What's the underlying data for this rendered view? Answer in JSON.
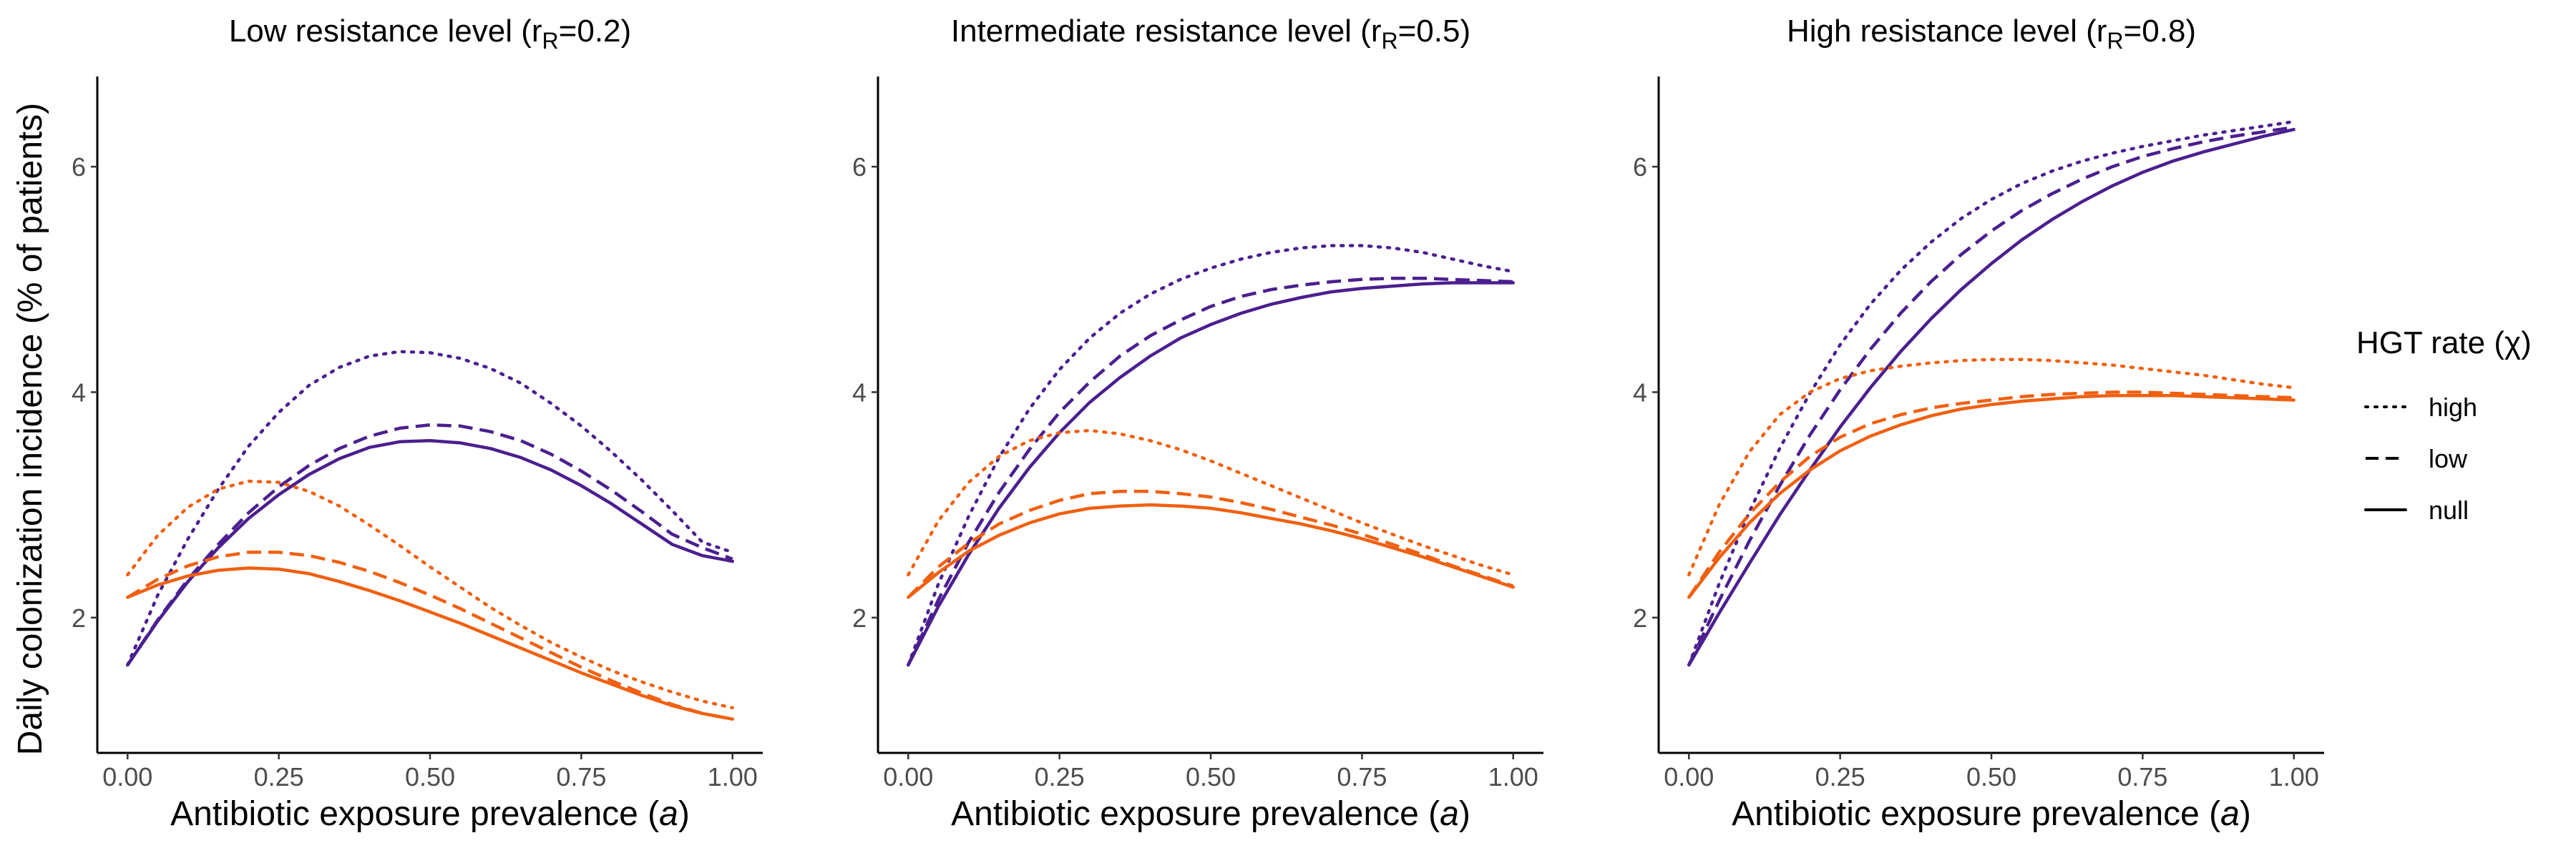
{
  "figure": {
    "y_axis_title": "Daily colonization incidence (% of patients)",
    "x_axis_title_prefix": "Antibiotic exposure prevalence (",
    "x_axis_title_var": "a",
    "x_axis_title_suffix": ")"
  },
  "legend": {
    "title": "HGT rate (χ)",
    "items": [
      {
        "label": "high",
        "dash": "dotted"
      },
      {
        "label": "low",
        "dash": "dashed"
      },
      {
        "label": "null",
        "dash": "solid"
      }
    ]
  },
  "colors": {
    "purple": "#4b1f8f",
    "orange": "#f06010"
  },
  "chart_data": [
    {
      "type": "line",
      "title": "Low resistance level (rR=0.2)",
      "title_main": "Low resistance level (r",
      "title_sub": "R",
      "title_end": "=0.2)",
      "xlabel": "Antibiotic exposure prevalence (a)",
      "ylabel": "Daily colonization incidence (% of patients)",
      "xlim": [
        -0.05,
        1.05
      ],
      "ylim": [
        0.8,
        6.8
      ],
      "xticks": [
        0,
        0.25,
        0.5,
        0.75,
        1
      ],
      "xtick_labels": [
        "0.00",
        "0.25",
        "0.50",
        "0.75",
        "1.00"
      ],
      "yticks": [
        2,
        4,
        6
      ],
      "ytick_labels": [
        "2",
        "4",
        "6"
      ],
      "x": [
        0,
        0.05,
        0.1,
        0.15,
        0.2,
        0.25,
        0.3,
        0.35,
        0.4,
        0.45,
        0.5,
        0.55,
        0.6,
        0.65,
        0.7,
        0.75,
        0.8,
        0.85,
        0.9,
        0.95,
        1.0
      ],
      "series": [
        {
          "color": "purple",
          "dash": "dotted",
          "values": [
            1.58,
            2.2,
            2.7,
            3.14,
            3.52,
            3.82,
            4.06,
            4.22,
            4.32,
            4.36,
            4.35,
            4.3,
            4.21,
            4.08,
            3.9,
            3.7,
            3.47,
            3.22,
            2.95,
            2.67,
            2.58
          ]
        },
        {
          "color": "purple",
          "dash": "dashed",
          "values": [
            1.58,
            1.98,
            2.34,
            2.65,
            2.93,
            3.16,
            3.35,
            3.5,
            3.61,
            3.68,
            3.71,
            3.7,
            3.65,
            3.57,
            3.45,
            3.3,
            3.13,
            2.94,
            2.74,
            2.62,
            2.52
          ]
        },
        {
          "color": "purple",
          "dash": "solid",
          "values": [
            1.58,
            1.97,
            2.32,
            2.62,
            2.88,
            3.09,
            3.27,
            3.41,
            3.51,
            3.56,
            3.57,
            3.55,
            3.5,
            3.42,
            3.31,
            3.17,
            3.01,
            2.83,
            2.65,
            2.55,
            2.5
          ]
        },
        {
          "color": "orange",
          "dash": "dotted",
          "values": [
            2.38,
            2.73,
            2.98,
            3.14,
            3.21,
            3.2,
            3.12,
            2.99,
            2.82,
            2.64,
            2.45,
            2.27,
            2.09,
            1.93,
            1.78,
            1.65,
            1.53,
            1.43,
            1.34,
            1.26,
            1.2
          ]
        },
        {
          "color": "orange",
          "dash": "dashed",
          "values": [
            2.18,
            2.34,
            2.46,
            2.54,
            2.58,
            2.58,
            2.55,
            2.49,
            2.41,
            2.31,
            2.2,
            2.08,
            1.95,
            1.82,
            1.69,
            1.56,
            1.44,
            1.33,
            1.23,
            1.15,
            1.1
          ]
        },
        {
          "color": "orange",
          "dash": "solid",
          "values": [
            2.18,
            2.29,
            2.37,
            2.42,
            2.44,
            2.43,
            2.39,
            2.32,
            2.24,
            2.15,
            2.05,
            1.95,
            1.84,
            1.73,
            1.62,
            1.51,
            1.41,
            1.31,
            1.22,
            1.15,
            1.1
          ]
        }
      ]
    },
    {
      "type": "line",
      "title": "Intermediate resistance level (rR=0.5)",
      "title_main": "Intermediate resistance level (r",
      "title_sub": "R",
      "title_end": "=0.5)",
      "xlabel": "Antibiotic exposure prevalence (a)",
      "xlim": [
        -0.05,
        1.05
      ],
      "ylim": [
        0.8,
        6.8
      ],
      "xticks": [
        0,
        0.25,
        0.5,
        0.75,
        1
      ],
      "xtick_labels": [
        "0.00",
        "0.25",
        "0.50",
        "0.75",
        "1.00"
      ],
      "yticks": [
        2,
        4,
        6
      ],
      "ytick_labels": [
        "2",
        "4",
        "6"
      ],
      "x": [
        0,
        0.05,
        0.1,
        0.15,
        0.2,
        0.25,
        0.3,
        0.35,
        0.4,
        0.45,
        0.5,
        0.55,
        0.6,
        0.65,
        0.7,
        0.75,
        0.8,
        0.85,
        0.9,
        0.95,
        1.0
      ],
      "series": [
        {
          "color": "purple",
          "dash": "dotted",
          "values": [
            1.58,
            2.3,
            2.9,
            3.42,
            3.85,
            4.2,
            4.48,
            4.7,
            4.87,
            5.0,
            5.1,
            5.18,
            5.24,
            5.28,
            5.3,
            5.3,
            5.28,
            5.24,
            5.18,
            5.12,
            5.07
          ]
        },
        {
          "color": "purple",
          "dash": "dashed",
          "values": [
            1.58,
            2.16,
            2.67,
            3.11,
            3.49,
            3.82,
            4.09,
            4.32,
            4.5,
            4.64,
            4.76,
            4.85,
            4.91,
            4.95,
            4.98,
            5.0,
            5.01,
            5.01,
            5.0,
            4.99,
            4.98
          ]
        },
        {
          "color": "purple",
          "dash": "solid",
          "values": [
            1.58,
            2.1,
            2.56,
            2.97,
            3.33,
            3.64,
            3.91,
            4.13,
            4.32,
            4.48,
            4.6,
            4.7,
            4.78,
            4.84,
            4.89,
            4.92,
            4.94,
            4.96,
            4.97,
            4.97,
            4.97
          ]
        },
        {
          "color": "orange",
          "dash": "dotted",
          "values": [
            2.38,
            2.86,
            3.2,
            3.43,
            3.57,
            3.64,
            3.66,
            3.63,
            3.57,
            3.49,
            3.39,
            3.28,
            3.17,
            3.06,
            2.95,
            2.84,
            2.74,
            2.64,
            2.55,
            2.46,
            2.38
          ]
        },
        {
          "color": "orange",
          "dash": "dashed",
          "values": [
            2.18,
            2.45,
            2.66,
            2.83,
            2.95,
            3.04,
            3.1,
            3.12,
            3.12,
            3.1,
            3.07,
            3.02,
            2.96,
            2.89,
            2.82,
            2.74,
            2.65,
            2.56,
            2.46,
            2.37,
            2.28
          ]
        },
        {
          "color": "orange",
          "dash": "solid",
          "values": [
            2.18,
            2.4,
            2.59,
            2.73,
            2.84,
            2.92,
            2.97,
            2.99,
            3.0,
            2.99,
            2.97,
            2.93,
            2.88,
            2.83,
            2.77,
            2.7,
            2.62,
            2.54,
            2.45,
            2.36,
            2.27
          ]
        }
      ]
    },
    {
      "type": "line",
      "title": "High resistance level (rR=0.8)",
      "title_main": "High resistance level (r",
      "title_sub": "R",
      "title_end": "=0.8)",
      "xlabel": "Antibiotic exposure prevalence (a)",
      "xlim": [
        -0.05,
        1.05
      ],
      "ylim": [
        0.8,
        6.8
      ],
      "xticks": [
        0,
        0.25,
        0.5,
        0.75,
        1
      ],
      "xtick_labels": [
        "0.00",
        "0.25",
        "0.50",
        "0.75",
        "1.00"
      ],
      "yticks": [
        2,
        4,
        6
      ],
      "ytick_labels": [
        "2",
        "4",
        "6"
      ],
      "x": [
        0,
        0.05,
        0.1,
        0.15,
        0.2,
        0.25,
        0.3,
        0.35,
        0.4,
        0.45,
        0.5,
        0.55,
        0.6,
        0.65,
        0.7,
        0.75,
        0.8,
        0.85,
        0.9,
        0.95,
        1.0
      ],
      "series": [
        {
          "color": "purple",
          "dash": "dotted",
          "values": [
            1.58,
            2.3,
            2.94,
            3.5,
            3.99,
            4.42,
            4.78,
            5.08,
            5.33,
            5.54,
            5.71,
            5.85,
            5.96,
            6.05,
            6.12,
            6.18,
            6.23,
            6.28,
            6.32,
            6.36,
            6.4
          ]
        },
        {
          "color": "purple",
          "dash": "dashed",
          "values": [
            1.58,
            2.15,
            2.68,
            3.17,
            3.62,
            4.02,
            4.38,
            4.7,
            4.98,
            5.22,
            5.43,
            5.61,
            5.76,
            5.89,
            6.0,
            6.09,
            6.16,
            6.22,
            6.27,
            6.31,
            6.35
          ]
        },
        {
          "color": "purple",
          "dash": "solid",
          "values": [
            1.58,
            2.04,
            2.48,
            2.91,
            3.31,
            3.69,
            4.04,
            4.36,
            4.65,
            4.91,
            5.14,
            5.35,
            5.53,
            5.69,
            5.83,
            5.95,
            6.05,
            6.13,
            6.2,
            6.27,
            6.33
          ]
        },
        {
          "color": "orange",
          "dash": "dotted",
          "values": [
            2.38,
            3.0,
            3.47,
            3.8,
            4.0,
            4.12,
            4.19,
            4.23,
            4.26,
            4.28,
            4.29,
            4.29,
            4.28,
            4.26,
            4.24,
            4.21,
            4.18,
            4.15,
            4.11,
            4.07,
            4.04
          ]
        },
        {
          "color": "orange",
          "dash": "dashed",
          "values": [
            2.18,
            2.58,
            2.92,
            3.2,
            3.43,
            3.6,
            3.72,
            3.8,
            3.86,
            3.9,
            3.93,
            3.96,
            3.98,
            3.99,
            4.0,
            4.0,
            3.99,
            3.98,
            3.97,
            3.96,
            3.95
          ]
        },
        {
          "color": "orange",
          "dash": "solid",
          "values": [
            2.18,
            2.53,
            2.84,
            3.1,
            3.31,
            3.48,
            3.61,
            3.71,
            3.79,
            3.85,
            3.89,
            3.92,
            3.94,
            3.96,
            3.97,
            3.97,
            3.97,
            3.96,
            3.95,
            3.94,
            3.93
          ]
        }
      ]
    }
  ]
}
